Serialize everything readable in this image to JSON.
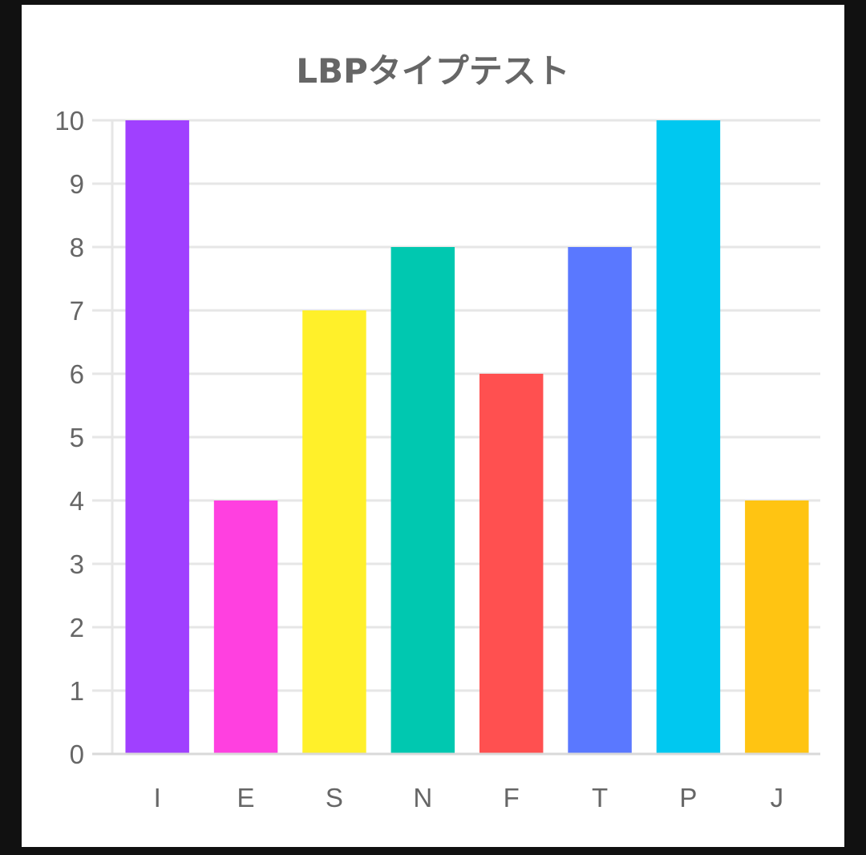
{
  "chart_data": {
    "type": "bar",
    "title": "LBPタイプテスト",
    "categories": [
      "I",
      "E",
      "S",
      "N",
      "F",
      "T",
      "P",
      "J"
    ],
    "values": [
      10,
      4,
      7,
      8,
      6,
      8,
      10,
      4
    ],
    "colors": [
      "#a040ff",
      "#ff40e0",
      "#fff02a",
      "#00c8b0",
      "#ff5050",
      "#5a78ff",
      "#00c8f0",
      "#ffc412"
    ],
    "ylim": [
      0,
      10
    ],
    "yticks": [
      0,
      1,
      2,
      3,
      4,
      5,
      6,
      7,
      8,
      9,
      10
    ],
    "xlabel": "",
    "ylabel": "",
    "grid": true,
    "legend": "none"
  }
}
